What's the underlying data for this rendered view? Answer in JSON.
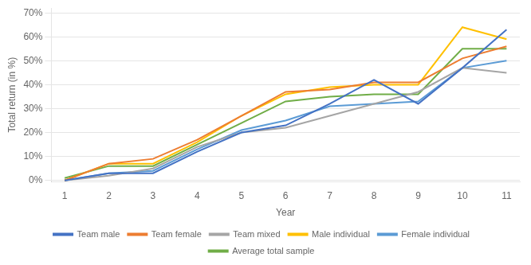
{
  "chart_data": {
    "type": "line",
    "xlabel": "Year",
    "ylabel": "Total return (in %)",
    "x": [
      1,
      2,
      3,
      4,
      5,
      6,
      7,
      8,
      9,
      10,
      11
    ],
    "series": [
      {
        "name": "Team male",
        "color": "#4472C4",
        "values": [
          0.0,
          0.03,
          0.03,
          0.12,
          0.2,
          0.23,
          0.32,
          0.42,
          0.32,
          0.47,
          0.63
        ]
      },
      {
        "name": "Team female",
        "color": "#ED7D31",
        "values": [
          0.0,
          0.07,
          0.09,
          0.17,
          0.27,
          0.37,
          0.38,
          0.41,
          0.41,
          0.51,
          0.56
        ]
      },
      {
        "name": "Team mixed",
        "color": "#A5A5A5",
        "values": [
          0.0,
          0.02,
          0.05,
          0.14,
          0.2,
          0.22,
          0.27,
          0.32,
          0.37,
          0.47,
          0.45
        ]
      },
      {
        "name": "Male individual",
        "color": "#FFC000",
        "values": [
          0.0,
          0.07,
          0.07,
          0.16,
          0.27,
          0.36,
          0.39,
          0.4,
          0.4,
          0.64,
          0.59
        ]
      },
      {
        "name": "Female individual",
        "color": "#5B9BD5",
        "values": [
          0.0,
          0.03,
          0.04,
          0.13,
          0.21,
          0.25,
          0.31,
          0.32,
          0.33,
          0.47,
          0.5
        ]
      },
      {
        "name": "Average total sample",
        "color": "#70AD47",
        "values": [
          0.01,
          0.06,
          0.06,
          0.15,
          0.24,
          0.33,
          0.35,
          0.36,
          0.36,
          0.55,
          0.55
        ]
      }
    ],
    "xlim": [
      0.7,
      11.3
    ],
    "xticks": [
      1,
      2,
      3,
      4,
      5,
      6,
      7,
      8,
      9,
      10,
      11
    ],
    "ylim": [
      -0.005,
      0.72
    ],
    "yticks": [
      {
        "value": 0.0,
        "label": "0%"
      },
      {
        "value": 0.1,
        "label": "10%"
      },
      {
        "value": 0.2,
        "label": "20%"
      },
      {
        "value": 0.3,
        "label": "30%"
      },
      {
        "value": 0.4,
        "label": "40%"
      },
      {
        "value": 0.5,
        "label": "50%"
      },
      {
        "value": 0.6,
        "label": "60%"
      },
      {
        "value": 0.7,
        "label": "70%"
      }
    ],
    "grid": "y",
    "legend": "bottom"
  }
}
